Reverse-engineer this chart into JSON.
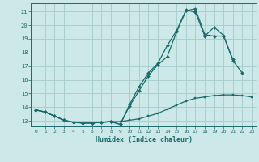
{
  "title": "",
  "xlabel": "Humidex (Indice chaleur)",
  "ylabel": "",
  "bg_color": "#cce8e8",
  "grid_color": "#aacfcf",
  "line_color": "#1a6b6b",
  "xlim": [
    -0.5,
    23.5
  ],
  "ylim": [
    12.6,
    21.6
  ],
  "yticks": [
    13,
    14,
    15,
    16,
    17,
    18,
    19,
    20,
    21
  ],
  "xticks": [
    0,
    1,
    2,
    3,
    4,
    5,
    6,
    7,
    8,
    9,
    10,
    11,
    12,
    13,
    14,
    15,
    16,
    17,
    18,
    19,
    20,
    21,
    22,
    23
  ],
  "line1_x": [
    0,
    1,
    2,
    3,
    4,
    5,
    6,
    7,
    8,
    9,
    10,
    11,
    12,
    13,
    14,
    15,
    16,
    17,
    18,
    19,
    20,
    21,
    22,
    23
  ],
  "line1_y": [
    13.8,
    13.65,
    13.35,
    13.05,
    12.9,
    12.85,
    12.85,
    12.9,
    12.95,
    12.95,
    13.05,
    13.15,
    13.35,
    13.55,
    13.85,
    14.15,
    14.45,
    14.65,
    14.75,
    14.85,
    14.9,
    14.9,
    14.85,
    14.75
  ],
  "line2_x": [
    0,
    1,
    2,
    3,
    4,
    5,
    6,
    7,
    8,
    9,
    10,
    11,
    12,
    13,
    14,
    15,
    16,
    17,
    18,
    19,
    20,
    21
  ],
  "line2_y": [
    13.8,
    13.65,
    13.35,
    13.05,
    12.9,
    12.85,
    12.85,
    12.9,
    12.95,
    12.75,
    14.1,
    15.2,
    16.3,
    17.1,
    17.7,
    19.5,
    21.05,
    21.2,
    19.3,
    19.2,
    19.2,
    17.5
  ],
  "line3_x": [
    0,
    1,
    2,
    3,
    4,
    5,
    6,
    7,
    8,
    9,
    10,
    11,
    12,
    13,
    14,
    15,
    16,
    17,
    18,
    19,
    20,
    21,
    22
  ],
  "line3_y": [
    13.8,
    13.65,
    13.35,
    13.05,
    12.9,
    12.85,
    12.85,
    12.9,
    12.95,
    12.75,
    14.2,
    15.5,
    16.5,
    17.2,
    18.5,
    19.6,
    21.1,
    20.95,
    19.2,
    19.85,
    19.25,
    17.4,
    16.5
  ]
}
